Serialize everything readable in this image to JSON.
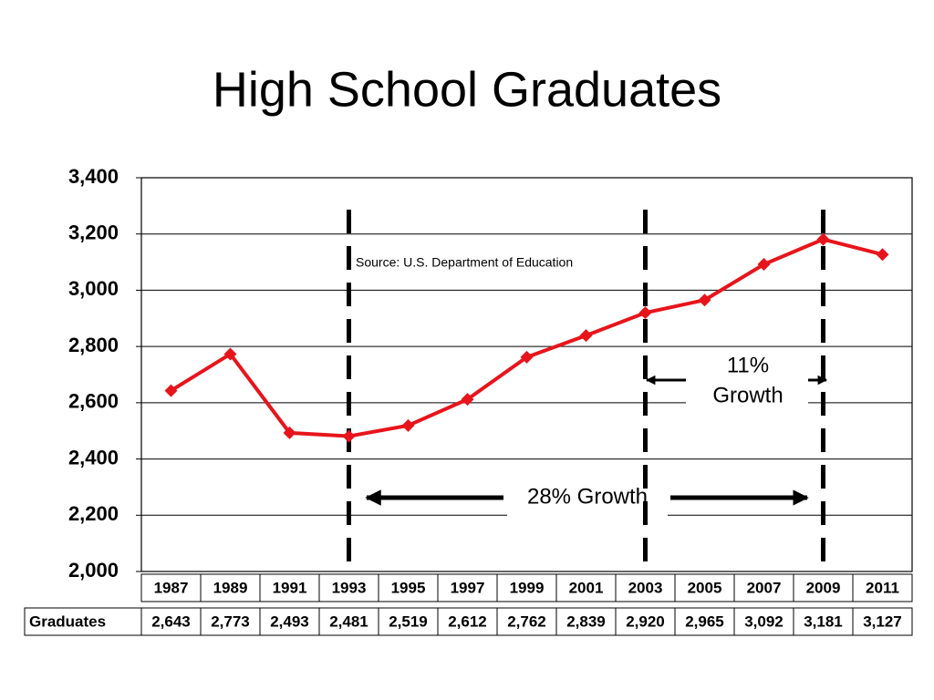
{
  "chart_data": {
    "type": "line",
    "title": "High School Graduates",
    "categories": [
      "1987",
      "1989",
      "1991",
      "1993",
      "1995",
      "1997",
      "1999",
      "2001",
      "2003",
      "2005",
      "2007",
      "2009",
      "2011"
    ],
    "series": [
      {
        "name": "Graduates",
        "color": "#e8141b",
        "values": [
          2643,
          2773,
          2493,
          2481,
          2519,
          2612,
          2762,
          2839,
          2920,
          2965,
          3092,
          3181,
          3127
        ],
        "value_labels": [
          "2,643",
          "2,773",
          "2,493",
          "2,481",
          "2,519",
          "2,612",
          "2,762",
          "2,839",
          "2,920",
          "2,965",
          "3,092",
          "3,181",
          "3,127"
        ]
      }
    ],
    "ylim": [
      2000,
      3400
    ],
    "yticks": [
      {
        "value": 2000,
        "label": "2,000"
      },
      {
        "value": 2200,
        "label": "2,200"
      },
      {
        "value": 2400,
        "label": "2,400"
      },
      {
        "value": 2600,
        "label": "2,600"
      },
      {
        "value": 2800,
        "label": "2,800"
      },
      {
        "value": 3000,
        "label": "3,000"
      },
      {
        "value": 3200,
        "label": "3,200"
      },
      {
        "value": 3400,
        "label": "3,400"
      }
    ],
    "grid": true,
    "annotations": [
      "Source:  U.S. Department of Education",
      "11%",
      "Growth",
      "28% Growth"
    ]
  }
}
